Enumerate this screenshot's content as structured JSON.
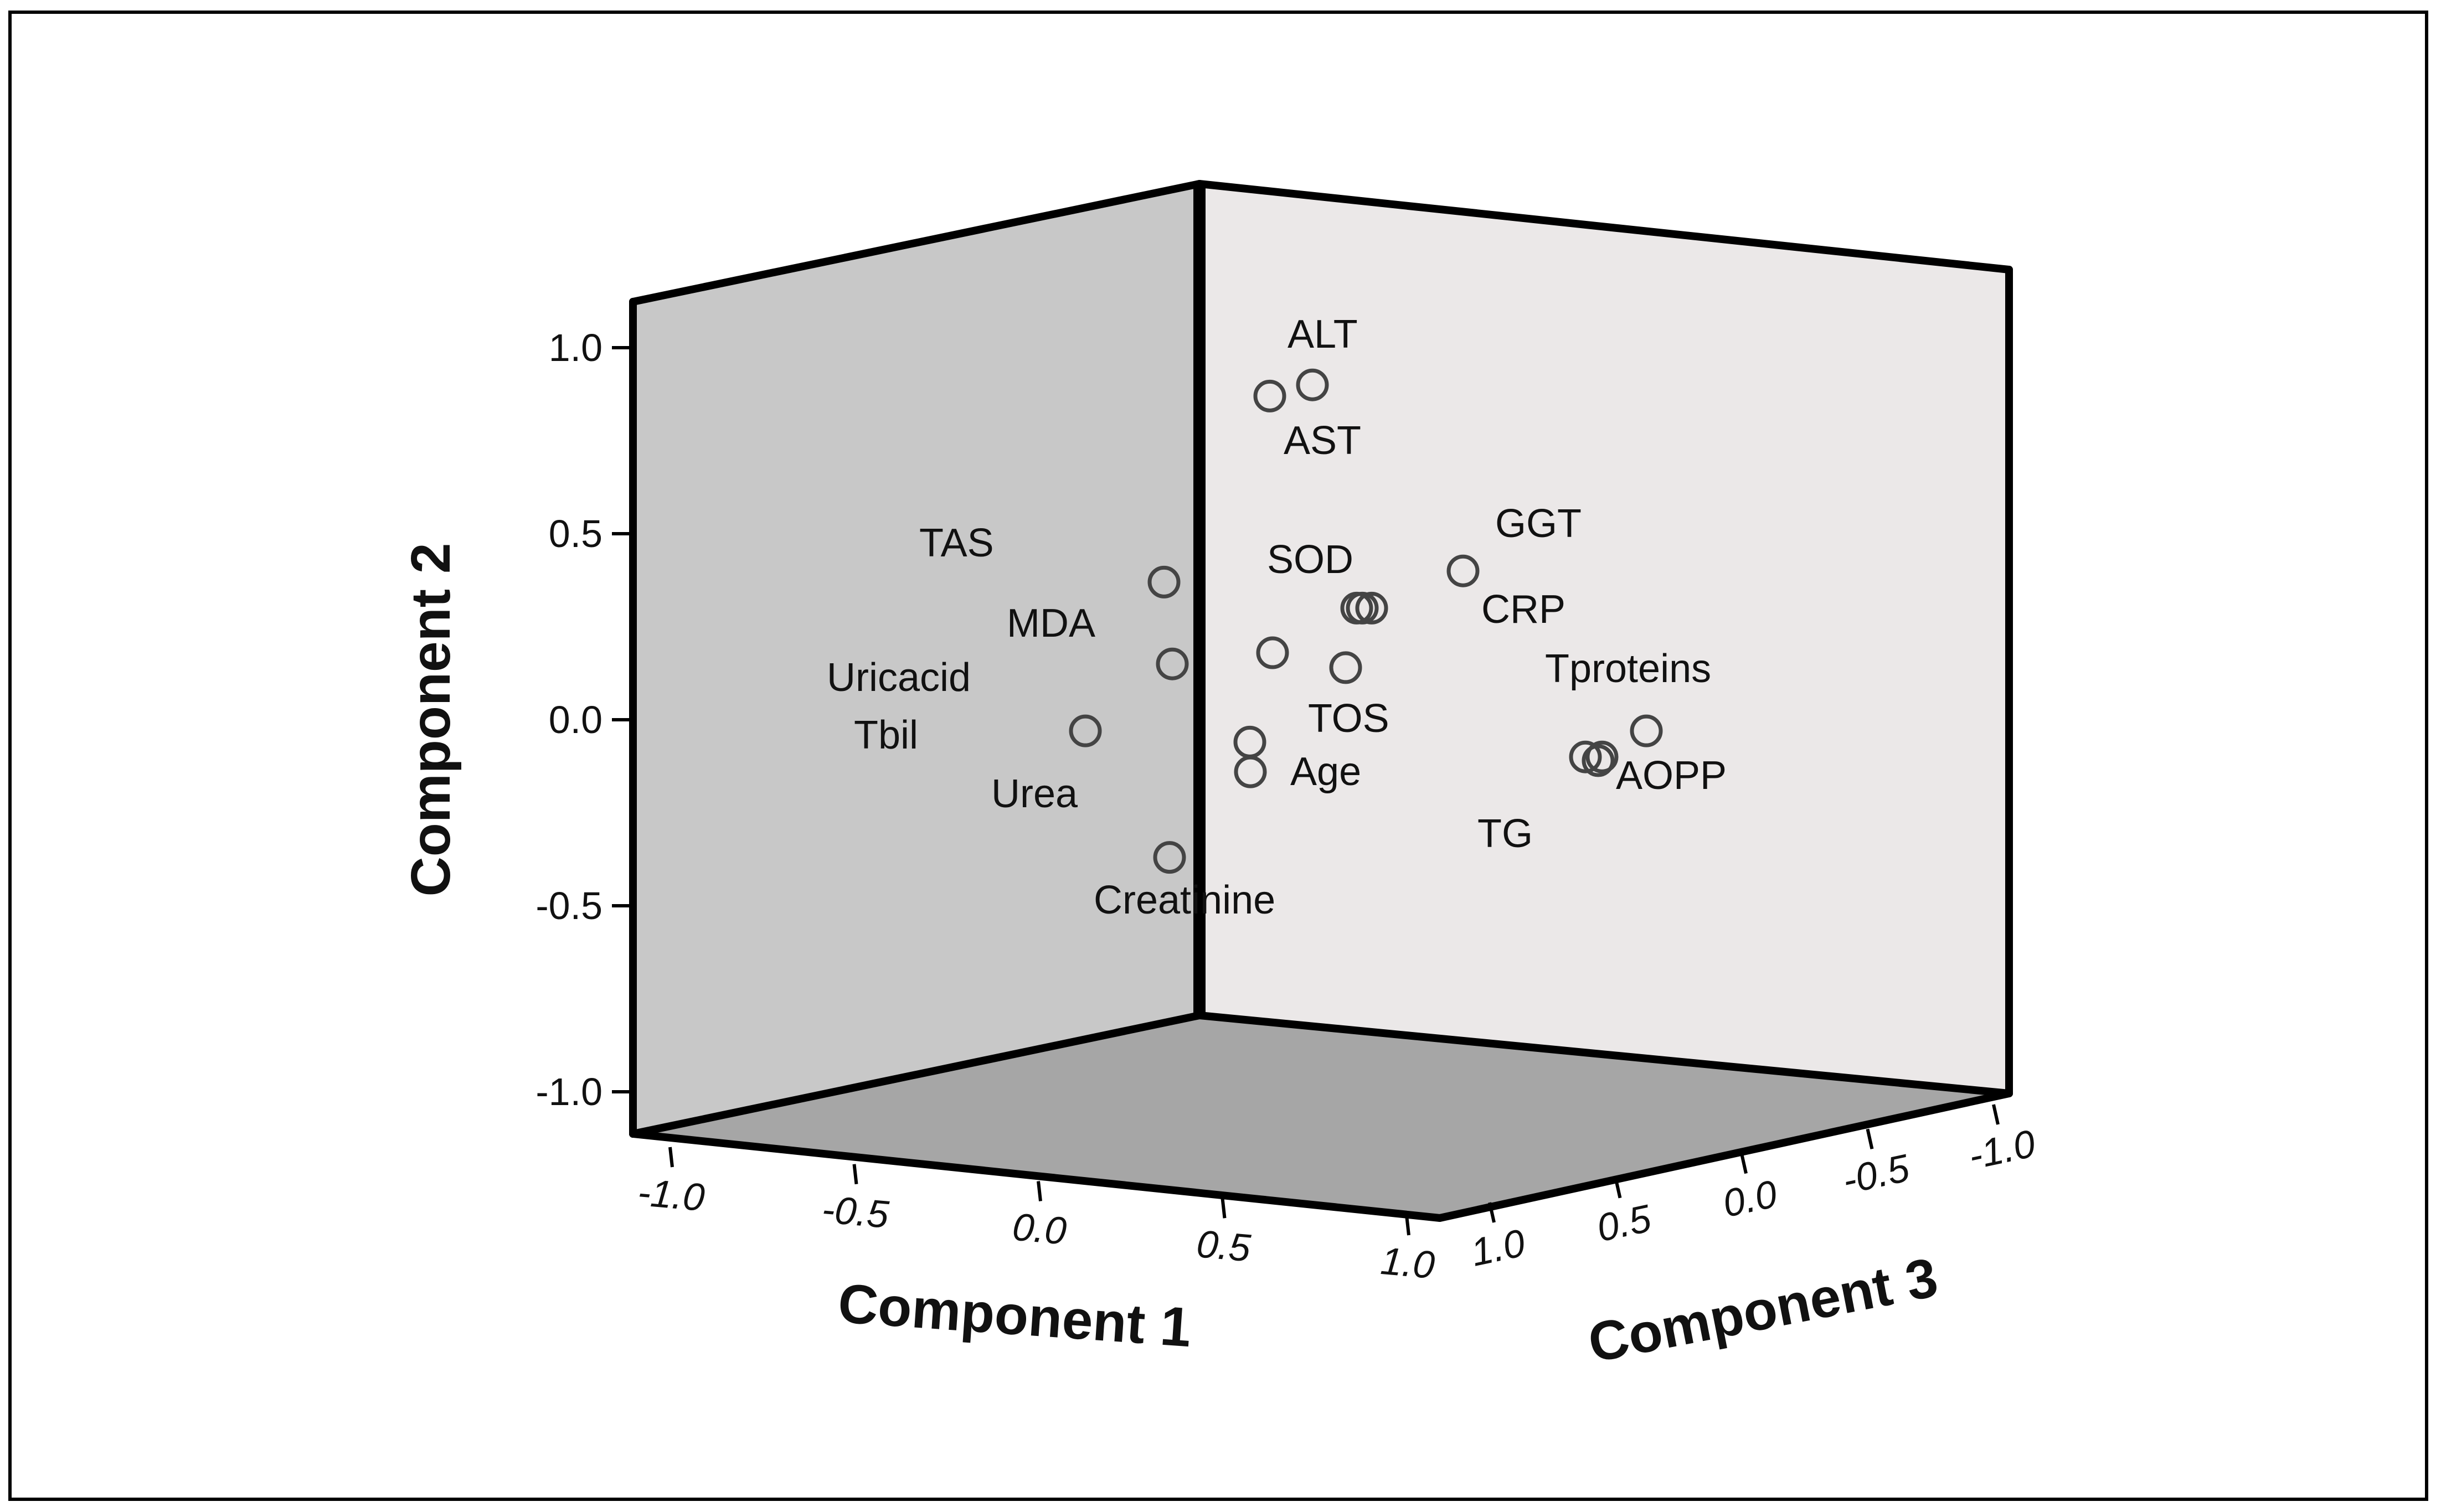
{
  "chart_data": {
    "type": "scatter",
    "title": "",
    "xlabel": "Component 1",
    "ylabel": "Component 2",
    "zlabel": "Component 3",
    "xlim": [
      -1.0,
      1.0
    ],
    "ylim": [
      -1.0,
      1.0
    ],
    "zlim": [
      -1.0,
      1.0
    ],
    "x_ticks": [
      "-1.0",
      "-0.5",
      "0.0",
      "0.5",
      "1.0"
    ],
    "y_ticks": [
      "-1.0",
      "-0.5",
      "0.0",
      "0.5",
      "1.0"
    ],
    "z_ticks": [
      "1.0",
      "0.5",
      "0.0",
      "-0.5",
      "-1.0"
    ],
    "colors": {
      "left_wall": "#c8c8c8",
      "right_wall": "#ebe8e8",
      "floor": "#a6a6a6",
      "frame": "#000000",
      "marker": "#444444"
    },
    "points": [
      {
        "label": "ALT",
        "y": 0.9
      },
      {
        "label": "AST",
        "y": 0.87
      },
      {
        "label": "GGT",
        "y": 0.4
      },
      {
        "label": "SOD",
        "y": 0.3
      },
      {
        "label": "CRP",
        "y": 0.3
      },
      {
        "label": "TAS",
        "y": 0.37
      },
      {
        "label": "MDA",
        "y": 0.15
      },
      {
        "label": "Uricacid",
        "y": 0.18
      },
      {
        "label": "TOS",
        "y": 0.14
      },
      {
        "label": "Tproteins",
        "y": -0.03
      },
      {
        "label": "Tbil",
        "y": -0.03
      },
      {
        "label": "Age",
        "y": -0.06
      },
      {
        "label": "Urea",
        "y": -0.14
      },
      {
        "label": "AOPP",
        "y": -0.1
      },
      {
        "label": "TG",
        "y": -0.11
      },
      {
        "label": "Creatinine",
        "y": -0.37
      }
    ]
  }
}
